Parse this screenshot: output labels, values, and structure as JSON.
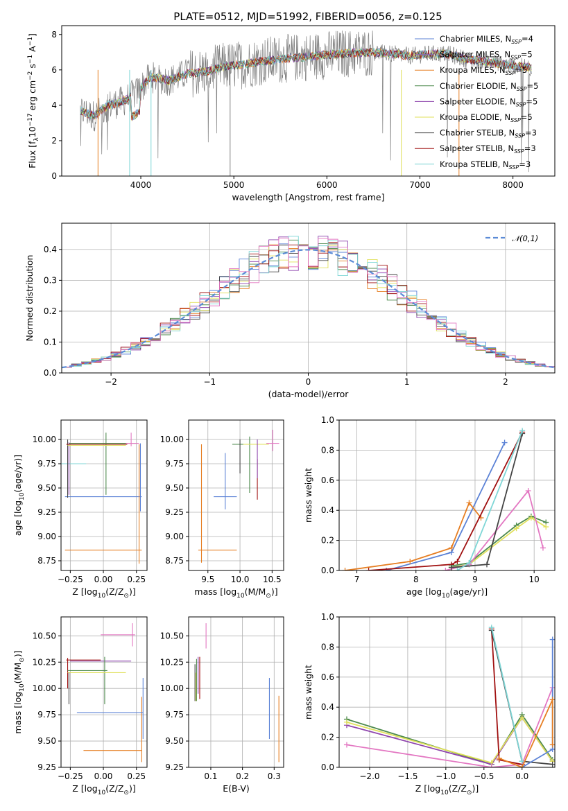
{
  "figure": {
    "title": "PLATE=0512, MJD=51992, FIBERID=0056, z=0.125"
  },
  "chart_data": [
    {
      "id": "spectrum",
      "type": "line",
      "xlabel": "wavelength [Angstrom, rest frame]",
      "ylabel": "Flux [f_λ10^{-17} erg cm^{-2} s^{-1} A^{-1}]",
      "xlim": [
        3150,
        8450
      ],
      "ylim": [
        0,
        8.5
      ],
      "xticks": [
        4000,
        5000,
        6000,
        7000,
        8000
      ],
      "yticks": [
        0,
        2,
        4,
        6,
        8
      ],
      "grid": false,
      "legend_position": "top-right",
      "data_shape": [
        [
          3350,
          3.7
        ],
        [
          3500,
          3.4
        ],
        [
          3650,
          4.0
        ],
        [
          3800,
          4.2
        ],
        [
          3950,
          4.7
        ],
        [
          4100,
          5.6
        ],
        [
          4300,
          5.4
        ],
        [
          4500,
          5.8
        ],
        [
          4700,
          5.9
        ],
        [
          4900,
          6.2
        ],
        [
          5100,
          6.3
        ],
        [
          5300,
          6.5
        ],
        [
          5500,
          6.6
        ],
        [
          5700,
          6.7
        ],
        [
          5900,
          6.8
        ],
        [
          6100,
          6.9
        ],
        [
          6300,
          6.95
        ],
        [
          6500,
          7.0
        ],
        [
          6700,
          6.9
        ],
        [
          6900,
          6.8
        ],
        [
          7100,
          6.9
        ],
        [
          7300,
          6.9
        ],
        [
          7500,
          6.6
        ],
        [
          7700,
          6.5
        ],
        [
          7900,
          6.3
        ],
        [
          8100,
          6.2
        ],
        [
          8200,
          6.1
        ]
      ],
      "series": [
        {
          "name": "Chabrier MILES",
          "nssp": "4",
          "color": "#5b82d6"
        },
        {
          "name": "Salpeter MILES",
          "nssp": "5",
          "color": "#8c6bb1"
        },
        {
          "name": "Kroupa MILES",
          "nssp": "5",
          "color": "#e67e22"
        },
        {
          "name": "Chabrier ELODIE",
          "nssp": "5",
          "color": "#4d8a4d"
        },
        {
          "name": "Salpeter ELODIE",
          "nssp": "5",
          "color": "#8e44ad"
        },
        {
          "name": "Kroupa ELODIE",
          "nssp": "5",
          "color": "#e0e05a"
        },
        {
          "name": "Chabrier STELIB",
          "nssp": "3",
          "color": "#444444"
        },
        {
          "name": "Salpeter STELIB",
          "nssp": "3",
          "color": "#a01010"
        },
        {
          "name": "Kroupa STELIB",
          "nssp": "3",
          "color": "#7fd6d6"
        }
      ],
      "data_color": "#808080"
    },
    {
      "id": "residuals",
      "type": "step",
      "xlabel": "(data-model)/error",
      "ylabel": "Normed distribution",
      "xlim": [
        -2.5,
        2.5
      ],
      "ylim": [
        0,
        0.485
      ],
      "xticks": [
        -2,
        -1,
        0,
        1,
        2
      ],
      "yticks": [
        0.0,
        0.1,
        0.2,
        0.3,
        0.4
      ],
      "grid": true,
      "legend_position": "top-right",
      "bin_width": 0.1,
      "reference": {
        "name": "𝒩(0,1)",
        "mean": 0,
        "sigma": 1,
        "color": "#5b8bd6"
      },
      "hist_colors": [
        "#5b82d6",
        "#e67e22",
        "#4d8a4d",
        "#8e44ad",
        "#e0e05a",
        "#444444",
        "#a01010",
        "#7fd6d6",
        "#e377c2"
      ]
    },
    {
      "id": "age-vs-Z",
      "type": "errorbar",
      "xlabel": "Z [log10(Z/Z⊙)]",
      "ylabel": "age  [log10(age/yr)]",
      "xlim": [
        -0.32,
        0.33
      ],
      "ylim": [
        8.65,
        10.2
      ],
      "xticks": [
        -0.25,
        0.0,
        0.25
      ],
      "yticks": [
        8.75,
        9.0,
        9.25,
        9.5,
        9.75,
        10.0
      ],
      "grid": true,
      "points": [
        {
          "x": 0.0,
          "y": 9.41,
          "xerr": 0.29,
          "yerr_lo": 0.0,
          "yerr_hi": 0.0,
          "color": "#5b82d6"
        },
        {
          "x": 0.28,
          "y": 9.41,
          "xerr": 0.0,
          "yerr_lo": 0.15,
          "yerr_hi": 0.55,
          "color": "#5b82d6"
        },
        {
          "x": 0.0,
          "y": 8.86,
          "xerr": 0.29,
          "yerr_lo": 0.0,
          "yerr_hi": 0.0,
          "color": "#e67e22"
        },
        {
          "x": 0.27,
          "y": 9.4,
          "xerr": 0.0,
          "yerr_lo": 0.68,
          "yerr_hi": 0.55,
          "color": "#e67e22"
        },
        {
          "x": -0.05,
          "y": 9.95,
          "xerr": 0.23,
          "yerr_lo": 0.0,
          "yerr_hi": 0.0,
          "color": "#e67e22"
        },
        {
          "x": 0.0,
          "y": 9.96,
          "xerr": 0.26,
          "yerr_lo": 0.0,
          "yerr_hi": 0.0,
          "color": "#4d8a4d"
        },
        {
          "x": 0.02,
          "y": 9.75,
          "xerr": 0.0,
          "yerr_lo": 0.32,
          "yerr_hi": 0.32,
          "color": "#4d8a4d"
        },
        {
          "x": -0.27,
          "y": 9.75,
          "xerr": 0.14,
          "yerr_lo": 0.0,
          "yerr_hi": 0.0,
          "color": "#7fd6d6"
        },
        {
          "x": -0.26,
          "y": 9.75,
          "xerr": 0.0,
          "yerr_lo": 0.32,
          "yerr_hi": 0.22,
          "color": "#8e44ad"
        },
        {
          "x": -0.27,
          "y": 9.7,
          "xerr": 0.0,
          "yerr_lo": 0.3,
          "yerr_hi": 0.3,
          "color": "#444444"
        },
        {
          "x": -0.05,
          "y": 9.95,
          "xerr": 0.23,
          "yerr_lo": 0.0,
          "yerr_hi": 0.0,
          "color": "#a01010"
        },
        {
          "x": -0.05,
          "y": 9.94,
          "xerr": 0.22,
          "yerr_lo": 0.0,
          "yerr_hi": 0.0,
          "color": "#e0e05a"
        },
        {
          "x": 0.21,
          "y": 10.0,
          "xerr": 0.0,
          "yerr_lo": 0.07,
          "yerr_hi": 0.07,
          "color": "#e377c2"
        },
        {
          "x": 0.22,
          "y": 9.96,
          "xerr": 0.05,
          "yerr_lo": 0.0,
          "yerr_hi": 0.0,
          "color": "#e377c2"
        }
      ]
    },
    {
      "id": "age-vs-mass",
      "type": "errorbar",
      "xlabel": "mass [log10(M/M⊙)]",
      "ylabel": "",
      "xlim": [
        9.2,
        10.68
      ],
      "ylim": [
        8.65,
        10.2
      ],
      "xticks": [
        9.5,
        10.0,
        10.5
      ],
      "yticks": [
        8.75,
        9.0,
        9.25,
        9.5,
        9.75,
        10.0
      ],
      "grid": true,
      "points": [
        {
          "x": 9.65,
          "y": 8.86,
          "xerr": 0.3,
          "yerr_lo": 0.0,
          "yerr_hi": 0.0,
          "color": "#e67e22"
        },
        {
          "x": 9.4,
          "y": 9.35,
          "xerr": 0.0,
          "yerr_lo": 0.62,
          "yerr_hi": 0.6,
          "color": "#e67e22"
        },
        {
          "x": 9.77,
          "y": 9.41,
          "xerr": 0.18,
          "yerr_lo": 0.0,
          "yerr_hi": 0.0,
          "color": "#5b82d6"
        },
        {
          "x": 9.77,
          "y": 9.56,
          "xerr": 0.0,
          "yerr_lo": 0.28,
          "yerr_hi": 0.3,
          "color": "#5b82d6"
        },
        {
          "x": 10.15,
          "y": 9.95,
          "xerr": 0.27,
          "yerr_lo": 0.0,
          "yerr_hi": 0.0,
          "color": "#4d8a4d"
        },
        {
          "x": 10.15,
          "y": 9.75,
          "xerr": 0.0,
          "yerr_lo": 0.3,
          "yerr_hi": 0.28,
          "color": "#4d8a4d"
        },
        {
          "x": 10.27,
          "y": 9.6,
          "xerr": 0.0,
          "yerr_lo": 0.22,
          "yerr_hi": 0.2,
          "color": "#a01010"
        },
        {
          "x": 10.25,
          "y": 9.95,
          "xerr": 0.2,
          "yerr_lo": 0.0,
          "yerr_hi": 0.0,
          "color": "#e0e05a"
        },
        {
          "x": 10.27,
          "y": 9.8,
          "xerr": 0.0,
          "yerr_lo": 0.2,
          "yerr_hi": 0.2,
          "color": "#8e44ad"
        },
        {
          "x": 10.0,
          "y": 9.8,
          "xerr": 0.0,
          "yerr_lo": 0.15,
          "yerr_hi": 0.2,
          "color": "#444444"
        },
        {
          "x": 10.51,
          "y": 9.96,
          "xerr": 0.1,
          "yerr_lo": 0.0,
          "yerr_hi": 0.0,
          "color": "#e377c2"
        },
        {
          "x": 10.51,
          "y": 10.0,
          "xerr": 0.0,
          "yerr_lo": 0.12,
          "yerr_hi": 0.1,
          "color": "#e377c2"
        }
      ]
    },
    {
      "id": "weight-vs-age",
      "type": "line",
      "xlabel": "age  [log10(age/yr)]",
      "ylabel": "mass weight",
      "xlim": [
        6.7,
        10.35
      ],
      "ylim": [
        0,
        1.0
      ],
      "xticks": [
        7,
        8,
        9,
        10
      ],
      "yticks": [
        0.0,
        0.2,
        0.4,
        0.6,
        0.8,
        1.0
      ],
      "grid": true,
      "series": [
        {
          "color": "#5b82d6",
          "x": [
            7.5,
            8.6,
            9.5
          ],
          "y": [
            0.0,
            0.12,
            0.85
          ]
        },
        {
          "color": "#e67e22",
          "x": [
            6.8,
            7.9,
            8.6,
            8.9,
            9.1
          ],
          "y": [
            0.0,
            0.06,
            0.15,
            0.45,
            0.35
          ]
        },
        {
          "color": "#4d8a4d",
          "x": [
            8.6,
            8.9,
            9.7,
            9.95,
            10.2
          ],
          "y": [
            0.03,
            0.05,
            0.3,
            0.36,
            0.32
          ]
        },
        {
          "color": "#e0e05a",
          "x": [
            8.6,
            8.9,
            9.7,
            9.95,
            10.2
          ],
          "y": [
            0.02,
            0.04,
            0.28,
            0.35,
            0.29
          ]
        },
        {
          "color": "#e377c2",
          "x": [
            8.5,
            8.9,
            9.9,
            10.15
          ],
          "y": [
            0.0,
            0.04,
            0.53,
            0.15
          ]
        },
        {
          "color": "#a01010",
          "x": [
            7.2,
            8.6,
            8.7,
            9.8
          ],
          "y": [
            0.0,
            0.04,
            0.06,
            0.92
          ]
        },
        {
          "color": "#444444",
          "x": [
            8.6,
            9.2,
            9.8
          ],
          "y": [
            0.02,
            0.04,
            0.91
          ]
        },
        {
          "color": "#7fd6d6",
          "x": [
            8.7,
            8.9,
            9.8
          ],
          "y": [
            0.0,
            0.05,
            0.93
          ]
        }
      ]
    },
    {
      "id": "mass-vs-Z",
      "type": "errorbar",
      "xlabel": "Z [log10(Z/Z⊙)]",
      "ylabel": "mass [log10(M/M⊙)]",
      "xlim": [
        -0.32,
        0.33
      ],
      "ylim": [
        9.25,
        10.68
      ],
      "xticks": [
        -0.25,
        0.0,
        0.25
      ],
      "yticks": [
        9.25,
        9.5,
        9.75,
        10.0,
        10.25,
        10.5
      ],
      "grid": true,
      "points": [
        {
          "x": 0.07,
          "y": 9.41,
          "xerr": 0.22,
          "yerr_lo": 0.0,
          "yerr_hi": 0.0,
          "color": "#e67e22"
        },
        {
          "x": 0.29,
          "y": 9.6,
          "xerr": 0.0,
          "yerr_lo": 0.3,
          "yerr_hi": 0.32,
          "color": "#e67e22"
        },
        {
          "x": 0.05,
          "y": 9.77,
          "xerr": 0.25,
          "yerr_lo": 0.0,
          "yerr_hi": 0.0,
          "color": "#5b82d6"
        },
        {
          "x": 0.3,
          "y": 9.8,
          "xerr": 0.0,
          "yerr_lo": 0.28,
          "yerr_hi": 0.3,
          "color": "#5b82d6"
        },
        {
          "x": -0.15,
          "y": 10.27,
          "xerr": 0.13,
          "yerr_lo": 0.0,
          "yerr_hi": 0.0,
          "color": "#a01010"
        },
        {
          "x": -0.27,
          "y": 10.17,
          "xerr": 0.0,
          "yerr_lo": 0.17,
          "yerr_hi": 0.12,
          "color": "#a01010"
        },
        {
          "x": -0.02,
          "y": 10.26,
          "xerr": 0.23,
          "yerr_lo": 0.0,
          "yerr_hi": 0.0,
          "color": "#8e44ad"
        },
        {
          "x": -0.12,
          "y": 10.17,
          "xerr": 0.15,
          "yerr_lo": 0.0,
          "yerr_hi": 0.0,
          "color": "#4d8a4d"
        },
        {
          "x": 0.01,
          "y": 10.1,
          "xerr": 0.0,
          "yerr_lo": 0.25,
          "yerr_hi": 0.2,
          "color": "#4d8a4d"
        },
        {
          "x": -0.05,
          "y": 10.15,
          "xerr": 0.22,
          "yerr_lo": 0.0,
          "yerr_hi": 0.0,
          "color": "#e0e05a"
        },
        {
          "x": -0.26,
          "y": 10.0,
          "xerr": 0.0,
          "yerr_lo": 0.15,
          "yerr_hi": 0.15,
          "color": "#444444"
        },
        {
          "x": 0.11,
          "y": 10.51,
          "xerr": 0.13,
          "yerr_lo": 0.0,
          "yerr_hi": 0.0,
          "color": "#e377c2"
        },
        {
          "x": 0.22,
          "y": 10.5,
          "xerr": 0.0,
          "yerr_lo": 0.1,
          "yerr_hi": 0.12,
          "color": "#e377c2"
        }
      ]
    },
    {
      "id": "mass-vs-ebv",
      "type": "errorbar",
      "xlabel": "E(B-V)",
      "ylabel": "",
      "xlim": [
        0.03,
        0.33
      ],
      "ylim": [
        9.25,
        10.68
      ],
      "xticks": [
        0.1,
        0.2,
        0.3
      ],
      "yticks": [
        9.25,
        9.5,
        9.75,
        10.0,
        10.25,
        10.5
      ],
      "grid": true,
      "points": [
        {
          "x": 0.285,
          "y": 9.8,
          "xerr": 0.0,
          "yerr_lo": 0.28,
          "yerr_hi": 0.3,
          "color": "#5b82d6"
        },
        {
          "x": 0.315,
          "y": 9.6,
          "xerr": 0.0,
          "yerr_lo": 0.3,
          "yerr_hi": 0.33,
          "color": "#e67e22"
        },
        {
          "x": 0.055,
          "y": 10.1,
          "xerr": 0.0,
          "yerr_lo": 0.22,
          "yerr_hi": 0.18,
          "color": "#4d8a4d"
        },
        {
          "x": 0.06,
          "y": 10.15,
          "xerr": 0.0,
          "yerr_lo": 0.2,
          "yerr_hi": 0.15,
          "color": "#8e44ad"
        },
        {
          "x": 0.065,
          "y": 10.1,
          "xerr": 0.0,
          "yerr_lo": 0.2,
          "yerr_hi": 0.2,
          "color": "#a01010"
        },
        {
          "x": 0.05,
          "y": 10.05,
          "xerr": 0.0,
          "yerr_lo": 0.17,
          "yerr_hi": 0.18,
          "color": "#444444"
        },
        {
          "x": 0.053,
          "y": 10.0,
          "xerr": 0.0,
          "yerr_lo": 0.12,
          "yerr_hi": 0.15,
          "color": "#e0e05a"
        },
        {
          "x": 0.085,
          "y": 10.5,
          "xerr": 0.0,
          "yerr_lo": 0.12,
          "yerr_hi": 0.12,
          "color": "#e377c2"
        }
      ]
    },
    {
      "id": "weight-vs-Z",
      "type": "line",
      "xlabel": "Z [log10(Z/Z⊙)]",
      "ylabel": "mass weight",
      "xlim": [
        -2.4,
        0.43
      ],
      "ylim": [
        0,
        1.0
      ],
      "xticks": [
        -2.0,
        -1.5,
        -1.0,
        -0.5,
        0.0
      ],
      "yticks": [
        0.0,
        0.2,
        0.4,
        0.6,
        0.8,
        1.0
      ],
      "grid": true,
      "series": [
        {
          "color": "#4d8a4d",
          "x": [
            -2.3,
            -0.4,
            0.0,
            0.4
          ],
          "y": [
            0.32,
            0.02,
            0.35,
            0.05
          ]
        },
        {
          "color": "#8e44ad",
          "x": [
            -2.3,
            -0.4,
            0.0,
            0.4
          ],
          "y": [
            0.28,
            0.02,
            0.33,
            0.04
          ]
        },
        {
          "color": "#e0e05a",
          "x": [
            -2.3,
            -0.4,
            0.0,
            0.4
          ],
          "y": [
            0.3,
            0.03,
            0.33,
            0.04
          ]
        },
        {
          "color": "#e377c2",
          "x": [
            -2.3,
            -0.4,
            0.0,
            0.4
          ],
          "y": [
            0.15,
            0.0,
            0.02,
            0.53
          ]
        },
        {
          "color": "#a01010",
          "x": [
            -0.4,
            -0.3,
            0.0
          ],
          "y": [
            0.92,
            0.05,
            0.02
          ]
        },
        {
          "color": "#444444",
          "x": [
            -0.4,
            0.0,
            0.4
          ],
          "y": [
            0.91,
            0.04,
            0.02
          ]
        },
        {
          "color": "#7fd6d6",
          "x": [
            -0.4,
            0.0
          ],
          "y": [
            0.93,
            0.04
          ]
        },
        {
          "color": "#5b82d6",
          "x": [
            0.0,
            0.4,
            0.4
          ],
          "y": [
            0.0,
            0.12,
            0.85
          ]
        },
        {
          "color": "#e67e22",
          "x": [
            -0.3,
            0.0,
            0.4,
            0.4
          ],
          "y": [
            0.06,
            0.0,
            0.45,
            0.15
          ]
        }
      ]
    }
  ]
}
